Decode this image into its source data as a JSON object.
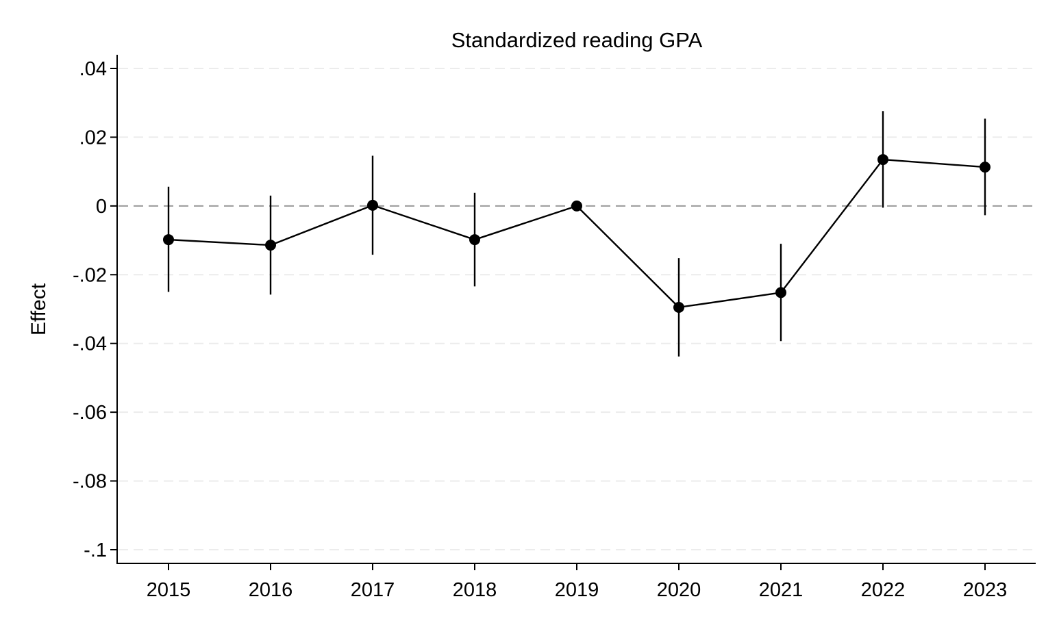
{
  "chart_data": {
    "type": "line",
    "title": "Standardized reading GPA",
    "xlabel": "",
    "ylabel": "Effect",
    "x": [
      2015,
      2016,
      2017,
      2018,
      2019,
      2020,
      2021,
      2022,
      2023
    ],
    "y_tick_values": [
      0.04,
      0.02,
      0,
      -0.02,
      -0.04,
      -0.06,
      -0.08,
      -0.1
    ],
    "y_tick_labels": [
      ".04",
      ".02",
      "0",
      "-.02",
      "-.04",
      "-.06",
      "-.08",
      "-.1"
    ],
    "x_tick_labels": [
      "2015",
      "2016",
      "2017",
      "2018",
      "2019",
      "2020",
      "2021",
      "2022",
      "2023"
    ],
    "ylim": [
      -0.1,
      0.04
    ],
    "grid": "horizontal dashed",
    "reference_line": 0,
    "series": [
      {
        "values": [
          -0.0098,
          -0.0114,
          0.0002,
          -0.0098,
          0.0,
          -0.0295,
          -0.0252,
          0.0135,
          0.0113
        ],
        "ci_lower": [
          -0.025,
          -0.0258,
          -0.0142,
          -0.0234,
          0.0,
          -0.0438,
          -0.0393,
          -0.0005,
          -0.0027
        ],
        "ci_upper": [
          0.0056,
          0.003,
          0.0146,
          0.0038,
          0.0,
          -0.0152,
          -0.011,
          0.0276,
          0.0254
        ]
      }
    ],
    "colors": {
      "line": "#000000",
      "marker": "#000000",
      "grid": "#ececec",
      "reference": "#999999",
      "axis": "#000000"
    }
  }
}
